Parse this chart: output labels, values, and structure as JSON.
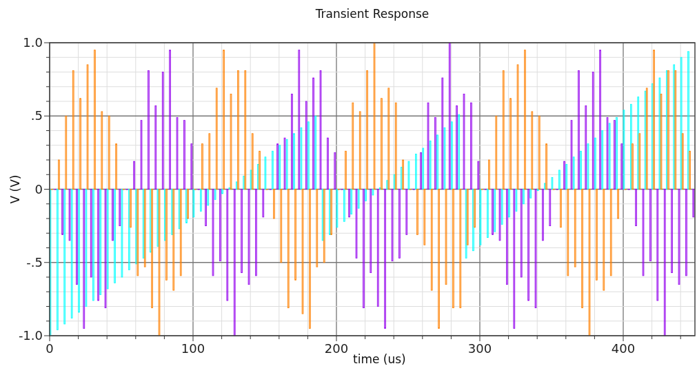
{
  "chart_data": {
    "type": "bar",
    "title": "Transient Response",
    "xlabel": "time (us)",
    "ylabel": "V (V)",
    "xlim": [
      0,
      450
    ],
    "ylim": [
      -1,
      1
    ],
    "xticks": [
      0,
      {
        "value": 20,
        "label": null
      },
      {
        "value": 40,
        "label": null
      },
      {
        "value": 60,
        "label": null
      },
      {
        "value": 80,
        "label": null
      },
      100,
      {
        "value": 120,
        "label": null
      },
      {
        "value": 140,
        "label": null
      },
      {
        "value": 160,
        "label": null
      },
      {
        "value": 180,
        "label": null
      },
      200,
      {
        "value": 220,
        "label": null
      },
      {
        "value": 240,
        "label": null
      },
      {
        "value": 260,
        "label": null
      },
      {
        "value": 280,
        "label": null
      },
      300,
      {
        "value": 320,
        "label": null
      },
      {
        "value": 340,
        "label": null
      },
      {
        "value": 360,
        "label": null
      },
      {
        "value": 380,
        "label": null
      },
      400,
      {
        "value": 420,
        "label": null
      },
      {
        "value": 440,
        "label": null
      }
    ],
    "yticks": [
      {
        "value": -1,
        "label": "-1.0"
      },
      {
        "value": -0.9,
        "label": null
      },
      {
        "value": -0.8,
        "label": null
      },
      {
        "value": -0.7,
        "label": null
      },
      {
        "value": -0.6,
        "label": null
      },
      {
        "value": -0.5,
        "label": "-.5"
      },
      {
        "value": -0.4,
        "label": null
      },
      {
        "value": -0.3,
        "label": null
      },
      {
        "value": -0.2,
        "label": null
      },
      {
        "value": -0.1,
        "label": null
      },
      0,
      {
        "value": 0.1,
        "label": null
      },
      {
        "value": 0.2,
        "label": null
      },
      {
        "value": 0.3,
        "label": null
      },
      {
        "value": 0.4,
        "label": null
      },
      {
        "value": 0.5,
        "label": ".5"
      },
      {
        "value": 0.6,
        "label": null
      },
      {
        "value": 0.7,
        "label": null
      },
      {
        "value": 0.8,
        "label": null
      },
      {
        "value": 0.9,
        "label": null
      },
      {
        "value": 1,
        "label": "1.0"
      }
    ],
    "grid": true,
    "series": [
      {
        "color": "#00ffff",
        "x": [
          0,
          5,
          10,
          15,
          20,
          25,
          30,
          35,
          40,
          45,
          50,
          55,
          60,
          65,
          70,
          75,
          80,
          85,
          90,
          95,
          100,
          105,
          110,
          115,
          120,
          125,
          130,
          135,
          140,
          145,
          150,
          155,
          160,
          165,
          170,
          175,
          180,
          185,
          190,
          195,
          200,
          205,
          210,
          215,
          220,
          225,
          230,
          235,
          240,
          245,
          250,
          255,
          260,
          265,
          270,
          275,
          280,
          285,
          290,
          295,
          300,
          305,
          310,
          315,
          320,
          325,
          330,
          335,
          340,
          345,
          350,
          355,
          360,
          365,
          370,
          375,
          380,
          385,
          390,
          395,
          400,
          405,
          410,
          415,
          420,
          425,
          430,
          435,
          440,
          445
        ],
        "values": [
          -1,
          -0.96,
          -0.92,
          -0.88,
          -0.84,
          -0.8,
          -0.76,
          -0.72,
          -0.68,
          -0.64,
          -0.6,
          -0.55,
          -0.51,
          -0.47,
          -0.43,
          -0.39,
          -0.35,
          -0.31,
          -0.27,
          -0.23,
          -0.19,
          -0.15,
          -0.11,
          -0.07,
          -0.03,
          0.01,
          0.05,
          0.09,
          0.13,
          0.17,
          0.22,
          0.26,
          0.3,
          0.34,
          0.38,
          0.42,
          0.46,
          0.5,
          -0.35,
          -0.31,
          -0.26,
          -0.22,
          -0.17,
          -0.13,
          -0.08,
          -0.04,
          0.01,
          0.06,
          0.1,
          0.15,
          0.19,
          0.24,
          0.28,
          0.33,
          0.37,
          0.42,
          0.46,
          0.51,
          -0.47,
          -0.42,
          -0.38,
          -0.33,
          -0.29,
          -0.24,
          -0.19,
          -0.15,
          -0.1,
          -0.06,
          -0.01,
          0.04,
          0.08,
          0.13,
          0.17,
          0.22,
          0.26,
          0.31,
          0.35,
          0.4,
          0.45,
          0.49,
          0.54,
          0.58,
          0.63,
          0.67,
          0.72,
          0.76,
          0.81,
          0.85,
          0.9,
          0.94
        ]
      },
      {
        "color": "#ff8000",
        "x": [
          1,
          6,
          11,
          16,
          21,
          26,
          31,
          36,
          41,
          46,
          51,
          56,
          61,
          66,
          71,
          76,
          81,
          86,
          91,
          96,
          101,
          106,
          111,
          116,
          121,
          126,
          131,
          136,
          141,
          146,
          151,
          156,
          161,
          166,
          171,
          176,
          181,
          186,
          191,
          196,
          201,
          206,
          211,
          216,
          221,
          226,
          231,
          236,
          241,
          246,
          251,
          256,
          261,
          266,
          271,
          276,
          281,
          286,
          291,
          296,
          301,
          306,
          311,
          316,
          321,
          326,
          331,
          336,
          341,
          346,
          351,
          356,
          361,
          366,
          371,
          376,
          381,
          386,
          391,
          396,
          401,
          406,
          411,
          416,
          421,
          426,
          431,
          436,
          441,
          446
        ],
        "values": [
          0,
          0.2,
          0.5,
          0.81,
          0.62,
          0.85,
          0.95,
          0.53,
          0.5,
          0.31,
          0,
          -0.26,
          -0.59,
          -0.53,
          -0.81,
          -1,
          -0.62,
          -0.69,
          -0.59,
          -0.2,
          0,
          0.31,
          0.38,
          0.69,
          0.95,
          0.65,
          0.81,
          0.81,
          0.38,
          0.26,
          0,
          -0.2,
          -0.5,
          -0.81,
          -0.62,
          -0.85,
          -0.95,
          -0.53,
          -0.5,
          -0.31,
          0,
          0.26,
          0.59,
          0.53,
          0.81,
          1,
          0.62,
          0.69,
          0.59,
          0.2,
          0,
          -0.31,
          -0.38,
          -0.69,
          -0.95,
          -0.65,
          -0.81,
          -0.81,
          -0.38,
          -0.26,
          0,
          0.2,
          0.5,
          0.81,
          0.62,
          0.85,
          0.95,
          0.53,
          0.5,
          0.31,
          0,
          -0.26,
          -0.59,
          -0.53,
          -0.81,
          -1,
          -0.62,
          -0.69,
          -0.59,
          -0.2,
          0,
          0.31,
          0.38,
          0.69,
          0.95,
          0.65,
          0.81,
          0.81,
          0.38,
          0.26
        ]
      },
      {
        "color": "#9400ee",
        "x": [
          3.5,
          8.5,
          13.5,
          18.5,
          23.5,
          28.5,
          33.5,
          38.5,
          43.5,
          48.5,
          53.5,
          58.5,
          63.5,
          68.5,
          73.5,
          78.5,
          83.5,
          88.5,
          93.5,
          98.5,
          103.5,
          108.5,
          113.5,
          118.5,
          123.5,
          128.5,
          133.5,
          138.5,
          143.5,
          148.5,
          153.5,
          158.5,
          163.5,
          168.5,
          173.5,
          178.5,
          183.5,
          188.5,
          193.5,
          198.5,
          203.5,
          208.5,
          213.5,
          218.5,
          223.5,
          228.5,
          233.5,
          238.5,
          243.5,
          248.5,
          253.5,
          258.5,
          263.5,
          268.5,
          273.5,
          278.5,
          283.5,
          288.5,
          293.5,
          298.5,
          303.5,
          308.5,
          313.5,
          318.5,
          323.5,
          328.5,
          333.5,
          338.5,
          343.5,
          348.5,
          353.5,
          358.5,
          363.5,
          368.5,
          373.5,
          378.5,
          383.5,
          388.5,
          393.5,
          398.5,
          403.5,
          408.5,
          413.5,
          418.5,
          423.5,
          428.5,
          433.5,
          438.5,
          443.5,
          448.5
        ],
        "values": [
          0,
          -0.31,
          -0.35,
          -0.65,
          -0.95,
          -0.6,
          -0.76,
          -0.81,
          -0.35,
          -0.25,
          0,
          0.19,
          0.47,
          0.81,
          0.57,
          0.8,
          0.95,
          0.49,
          0.47,
          0.31,
          0,
          -0.25,
          -0.59,
          -0.49,
          -0.76,
          -1,
          -0.57,
          -0.65,
          -0.59,
          -0.19,
          0,
          0.31,
          0.35,
          0.65,
          0.95,
          0.6,
          0.76,
          0.81,
          0.35,
          0.25,
          0,
          -0.19,
          -0.47,
          -0.81,
          -0.57,
          -0.8,
          -0.95,
          -0.49,
          -0.47,
          -0.31,
          0,
          0.25,
          0.59,
          0.49,
          0.76,
          1,
          0.57,
          0.65,
          0.59,
          0.19,
          0,
          -0.31,
          -0.35,
          -0.65,
          -0.95,
          -0.6,
          -0.76,
          -0.81,
          -0.35,
          -0.25,
          0,
          0.19,
          0.47,
          0.81,
          0.57,
          0.8,
          0.95,
          0.49,
          0.47,
          0.31,
          0,
          -0.25,
          -0.59,
          -0.49,
          -0.76,
          -1,
          -0.57,
          -0.65,
          -0.59,
          -0.19
        ]
      }
    ]
  }
}
